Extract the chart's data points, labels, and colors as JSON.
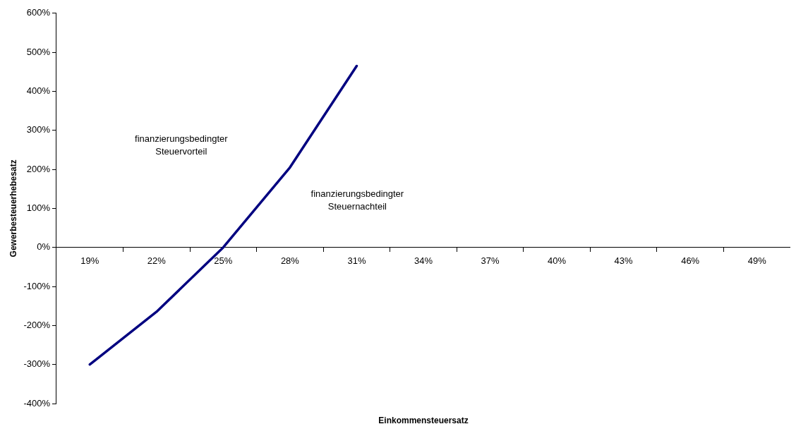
{
  "chart_data": {
    "type": "line",
    "xlabel": "Einkommensteuersatz",
    "ylabel": "Gewerbesteuerhebesatz",
    "categories": [
      "19%",
      "22%",
      "25%",
      "28%",
      "31%",
      "34%",
      "37%",
      "40%",
      "43%",
      "46%",
      "49%"
    ],
    "series": [
      {
        "color": "#000080",
        "values": [
          -300,
          -165,
          0,
          205,
          465,
          null,
          null,
          null,
          null,
          null,
          null
        ]
      }
    ],
    "ylim": [
      -400,
      600
    ],
    "yticks": [
      {
        "value": -400,
        "label": "-400%"
      },
      {
        "value": -300,
        "label": "-300%"
      },
      {
        "value": -200,
        "label": "-200%"
      },
      {
        "value": -100,
        "label": "-100%"
      },
      {
        "value": 0,
        "label": "0%"
      },
      {
        "value": 100,
        "label": "100%"
      },
      {
        "value": 200,
        "label": "200%"
      },
      {
        "value": 300,
        "label": "300%"
      },
      {
        "value": 400,
        "label": "400%"
      },
      {
        "value": 500,
        "label": "500%"
      },
      {
        "value": 600,
        "label": "600%"
      }
    ],
    "annotations": [
      "finanzierungsbedingter\nSteuervorteil",
      "finanzierungsbedingter\nSteuernachteil"
    ],
    "grid": false,
    "legend": false,
    "marker": "none",
    "line_style": "solid"
  }
}
